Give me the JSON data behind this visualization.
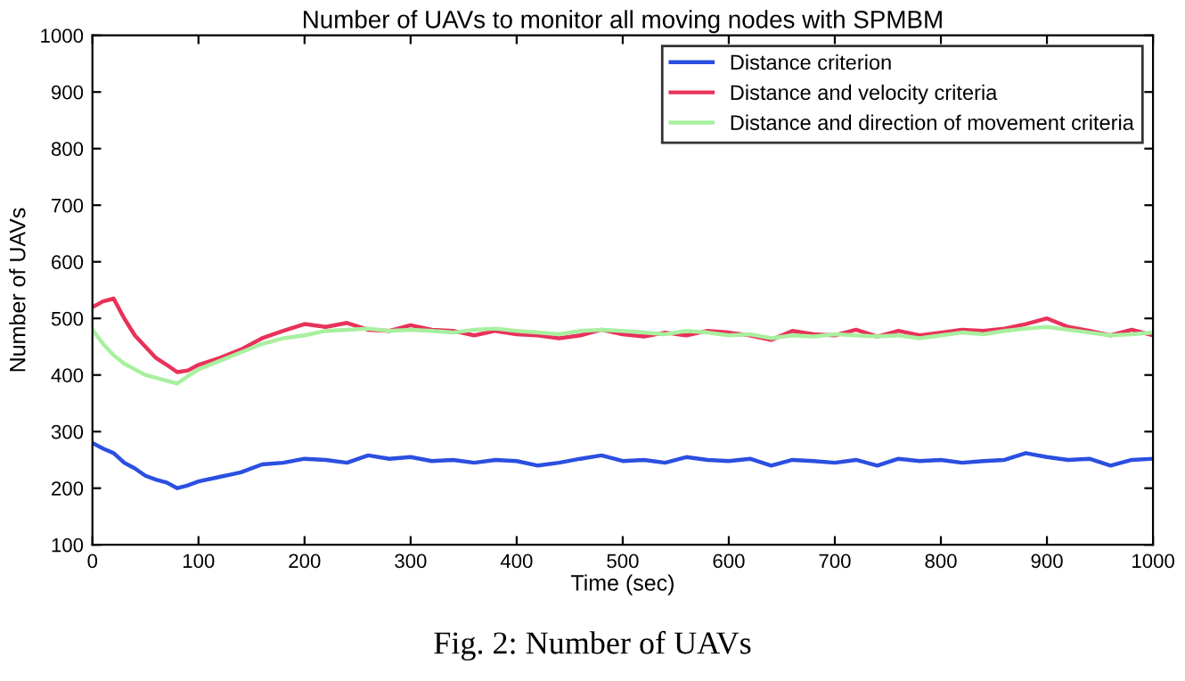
{
  "chart_data": {
    "type": "line",
    "title": "Number of UAVs to monitor all moving nodes with SPMBM",
    "xlabel": "Time (sec)",
    "ylabel": "Number of UAVs",
    "x": [
      0,
      10,
      20,
      30,
      40,
      50,
      60,
      70,
      80,
      90,
      100,
      120,
      140,
      160,
      180,
      200,
      220,
      240,
      260,
      280,
      300,
      320,
      340,
      360,
      380,
      400,
      420,
      440,
      460,
      480,
      500,
      520,
      540,
      560,
      580,
      600,
      620,
      640,
      660,
      680,
      700,
      720,
      740,
      760,
      780,
      800,
      820,
      840,
      860,
      880,
      900,
      920,
      940,
      960,
      980,
      1000
    ],
    "series": [
      {
        "name": "Distance criterion",
        "color": "#2b4fe0",
        "values": [
          280,
          270,
          262,
          245,
          235,
          222,
          215,
          210,
          200,
          205,
          212,
          220,
          228,
          242,
          245,
          252,
          250,
          245,
          258,
          252,
          255,
          248,
          250,
          245,
          250,
          248,
          240,
          245,
          252,
          258,
          248,
          250,
          245,
          255,
          250,
          248,
          252,
          240,
          250,
          248,
          245,
          250,
          240,
          252,
          248,
          250,
          245,
          248,
          250,
          262,
          255,
          250,
          252,
          240,
          250,
          252
        ]
      },
      {
        "name": "Distance and velocity criteria",
        "color": "#e8325a",
        "values": [
          520,
          530,
          535,
          500,
          470,
          450,
          430,
          418,
          405,
          408,
          418,
          430,
          445,
          465,
          478,
          490,
          485,
          492,
          480,
          478,
          488,
          480,
          478,
          470,
          478,
          472,
          470,
          465,
          470,
          480,
          472,
          468,
          475,
          470,
          478,
          475,
          470,
          462,
          478,
          472,
          470,
          480,
          468,
          478,
          470,
          475,
          480,
          478,
          482,
          490,
          500,
          485,
          478,
          470,
          480,
          470
        ]
      },
      {
        "name": "Distance and direction of movement criteria",
        "color": "#a8f0a0",
        "values": [
          480,
          455,
          435,
          420,
          410,
          400,
          395,
          390,
          385,
          398,
          410,
          425,
          440,
          455,
          465,
          470,
          478,
          480,
          482,
          478,
          480,
          478,
          475,
          480,
          482,
          478,
          475,
          472,
          478,
          480,
          478,
          475,
          472,
          478,
          475,
          470,
          472,
          465,
          470,
          468,
          472,
          470,
          468,
          470,
          465,
          470,
          475,
          472,
          478,
          482,
          485,
          480,
          475,
          470,
          472,
          475
        ]
      }
    ],
    "xlim": [
      0,
      1000
    ],
    "xticks": [
      0,
      100,
      200,
      300,
      400,
      500,
      600,
      700,
      800,
      900,
      1000
    ],
    "ylim": [
      100,
      1000
    ],
    "yticks": [
      100,
      200,
      300,
      400,
      500,
      600,
      700,
      800,
      900,
      1000
    ],
    "grid": false,
    "legend": "top right",
    "marker": "none",
    "line_style": "solid",
    "annotations": [
      "Fig. 2: Number of UAVs"
    ]
  }
}
